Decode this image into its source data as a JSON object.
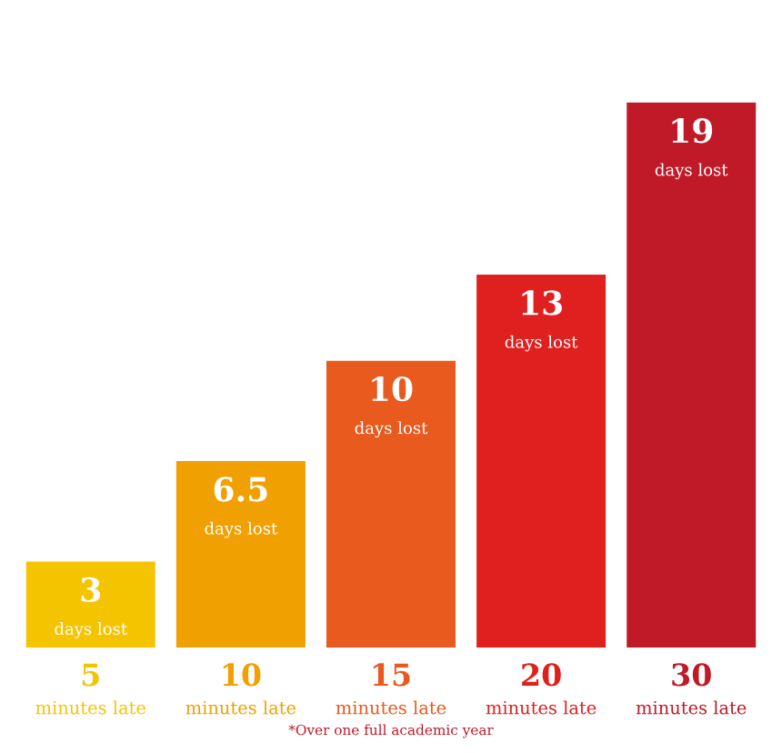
{
  "chart_data": {
    "type": "bar",
    "categories": [
      "5\nminutes late",
      "10\nminutes late",
      "15\nminutes late",
      "20\nminutes late",
      "30\nminutes late"
    ],
    "values": [
      3,
      6.5,
      10,
      13,
      19
    ],
    "colors": [
      "#f5c400",
      "#f0a000",
      "#e85a1e",
      "#e0201e",
      "#c01a28"
    ],
    "value_labels": [
      "3\ndays lost",
      "6.5\ndays lost",
      "10\ndays lost",
      "13\ndays lost",
      "19\ndays lost"
    ],
    "annotations": [
      "*Over one full academic year"
    ]
  }
}
